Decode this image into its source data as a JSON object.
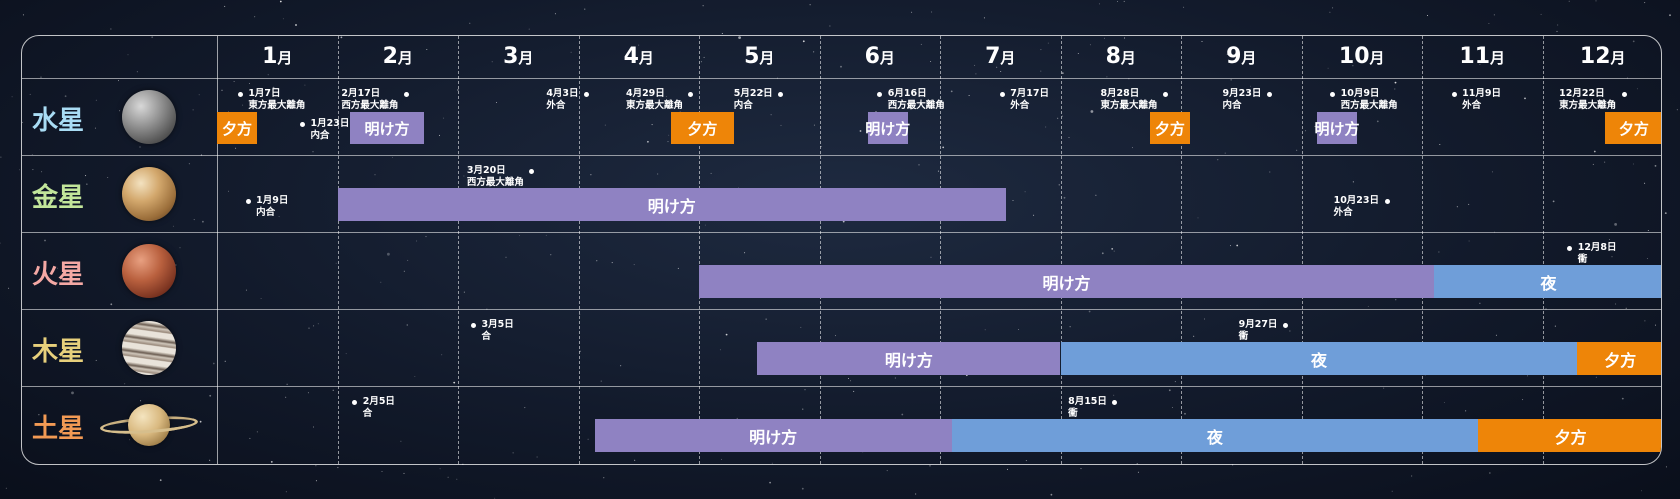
{
  "colors": {
    "morning": "#8f82c2",
    "night": "#6f9ed9",
    "evening": "#ee8508",
    "mercury_label": "#a9dcf4",
    "venus_label": "#c2e69a",
    "mars_label": "#f4a8a4",
    "jupiter_label": "#e7d07c",
    "saturn_label": "#f29a54"
  },
  "months": [
    {
      "n": "1",
      "u": "月"
    },
    {
      "n": "2",
      "u": "月"
    },
    {
      "n": "3",
      "u": "月"
    },
    {
      "n": "4",
      "u": "月"
    },
    {
      "n": "5",
      "u": "月"
    },
    {
      "n": "6",
      "u": "月"
    },
    {
      "n": "7",
      "u": "月"
    },
    {
      "n": "8",
      "u": "月"
    },
    {
      "n": "9",
      "u": "月"
    },
    {
      "n": "10",
      "u": "月"
    },
    {
      "n": "11",
      "u": "月"
    },
    {
      "n": "12",
      "u": "月"
    }
  ],
  "planets": [
    {
      "name": "水星",
      "color_key": "mercury_label",
      "icon": "mercury-icon",
      "events": [
        {
          "m": 1,
          "d": 7,
          "date": "1月7日",
          "label": "東方最大離角",
          "side": "right",
          "row": 0
        },
        {
          "m": 1,
          "d": 23,
          "date": "1月23日",
          "label": "内合",
          "side": "right",
          "row": 1
        },
        {
          "m": 2,
          "d": 17,
          "date": "2月17日",
          "label": "西方最大離角",
          "side": "left",
          "row": 0
        },
        {
          "m": 4,
          "d": 3,
          "date": "4月3日",
          "label": "外合",
          "side": "left",
          "row": 0
        },
        {
          "m": 4,
          "d": 29,
          "date": "4月29日",
          "label": "東方最大離角",
          "side": "left",
          "row": 0
        },
        {
          "m": 5,
          "d": 22,
          "date": "5月22日",
          "label": "内合",
          "side": "left",
          "row": 0
        },
        {
          "m": 6,
          "d": 16,
          "date": "6月16日",
          "label": "西方最大離角",
          "side": "right",
          "row": 0
        },
        {
          "m": 7,
          "d": 17,
          "date": "7月17日",
          "label": "外合",
          "side": "right",
          "row": 0
        },
        {
          "m": 8,
          "d": 28,
          "date": "8月28日",
          "label": "東方最大離角",
          "side": "left",
          "row": 0
        },
        {
          "m": 9,
          "d": 23,
          "date": "9月23日",
          "label": "内合",
          "side": "left",
          "row": 0
        },
        {
          "m": 10,
          "d": 9,
          "date": "10月9日",
          "label": "西方最大離角",
          "side": "right",
          "row": 0
        },
        {
          "m": 11,
          "d": 9,
          "date": "11月9日",
          "label": "外合",
          "side": "right",
          "row": 0
        },
        {
          "m": 12,
          "d": 22,
          "date": "12月22日",
          "label": "東方最大離角",
          "side": "left",
          "row": 0
        }
      ],
      "small_bars": [
        {
          "start": [
            1,
            1
          ],
          "end": [
            1,
            11
          ],
          "label": "夕方",
          "kind": "evening"
        },
        {
          "start": [
            2,
            4
          ],
          "end": [
            2,
            21
          ],
          "label": "明け方",
          "kind": "morning"
        },
        {
          "start": [
            4,
            24
          ],
          "end": [
            5,
            10
          ],
          "label": "夕方",
          "kind": "evening"
        },
        {
          "start": [
            6,
            13
          ],
          "end": [
            6,
            23
          ],
          "label": "明け方",
          "kind": "morning"
        },
        {
          "start": [
            8,
            24
          ],
          "end": [
            9,
            2
          ],
          "label": "夕方",
          "kind": "evening"
        },
        {
          "start": [
            10,
            5
          ],
          "end": [
            10,
            15
          ],
          "label": "明け方",
          "kind": "morning"
        },
        {
          "start": [
            12,
            17
          ],
          "end": [
            12,
            31
          ],
          "label": "夕方",
          "kind": "evening"
        }
      ]
    },
    {
      "name": "金星",
      "color_key": "venus_label",
      "icon": "venus-icon",
      "events": [
        {
          "m": 1,
          "d": 9,
          "date": "1月9日",
          "label": "内合",
          "side": "right",
          "row": 1
        },
        {
          "m": 3,
          "d": 20,
          "date": "3月20日",
          "label": "西方最大離角",
          "side": "left",
          "row": 0
        },
        {
          "m": 10,
          "d": 23,
          "date": "10月23日",
          "label": "外合",
          "side": "left",
          "row": 1
        }
      ],
      "bars": [
        {
          "start": [
            2,
            1
          ],
          "end": [
            7,
            18
          ],
          "label": "明け方",
          "kind": "morning"
        }
      ]
    },
    {
      "name": "火星",
      "color_key": "mars_label",
      "icon": "mars-icon",
      "events": [
        {
          "m": 12,
          "d": 8,
          "date": "12月8日",
          "label": "衝",
          "side": "right",
          "row": 0
        }
      ],
      "bars": [
        {
          "start": [
            5,
            1
          ],
          "end": [
            11,
            4
          ],
          "label": "明け方",
          "kind": "morning"
        },
        {
          "start": [
            11,
            4
          ],
          "end": [
            12,
            31
          ],
          "label": "夜",
          "kind": "night"
        }
      ]
    },
    {
      "name": "木星",
      "color_key": "jupiter_label",
      "icon": "jupiter-icon",
      "events": [
        {
          "m": 3,
          "d": 5,
          "date": "3月5日",
          "label": "合",
          "side": "right",
          "row": 0
        },
        {
          "m": 9,
          "d": 27,
          "date": "9月27日",
          "label": "衝",
          "side": "left",
          "row": 0
        }
      ],
      "bars": [
        {
          "start": [
            5,
            16
          ],
          "end": [
            8,
            1
          ],
          "label": "明け方",
          "kind": "morning"
        },
        {
          "start": [
            8,
            1
          ],
          "end": [
            12,
            10
          ],
          "label": "夜",
          "kind": "night"
        },
        {
          "start": [
            12,
            10
          ],
          "end": [
            12,
            31
          ],
          "label": "夕方",
          "kind": "evening"
        }
      ]
    },
    {
      "name": "土星",
      "color_key": "saturn_label",
      "icon": "saturn-icon",
      "events": [
        {
          "m": 2,
          "d": 5,
          "date": "2月5日",
          "label": "合",
          "side": "right",
          "row": 0
        },
        {
          "m": 8,
          "d": 15,
          "date": "8月15日",
          "label": "衝",
          "side": "left",
          "row": 0
        }
      ],
      "bars": [
        {
          "start": [
            4,
            5
          ],
          "end": [
            7,
            4
          ],
          "label": "明け方",
          "kind": "morning"
        },
        {
          "start": [
            7,
            4
          ],
          "end": [
            11,
            15
          ],
          "label": "夜",
          "kind": "night"
        },
        {
          "start": [
            11,
            15
          ],
          "end": [
            12,
            31
          ],
          "label": "夕方",
          "kind": "evening"
        }
      ]
    }
  ]
}
